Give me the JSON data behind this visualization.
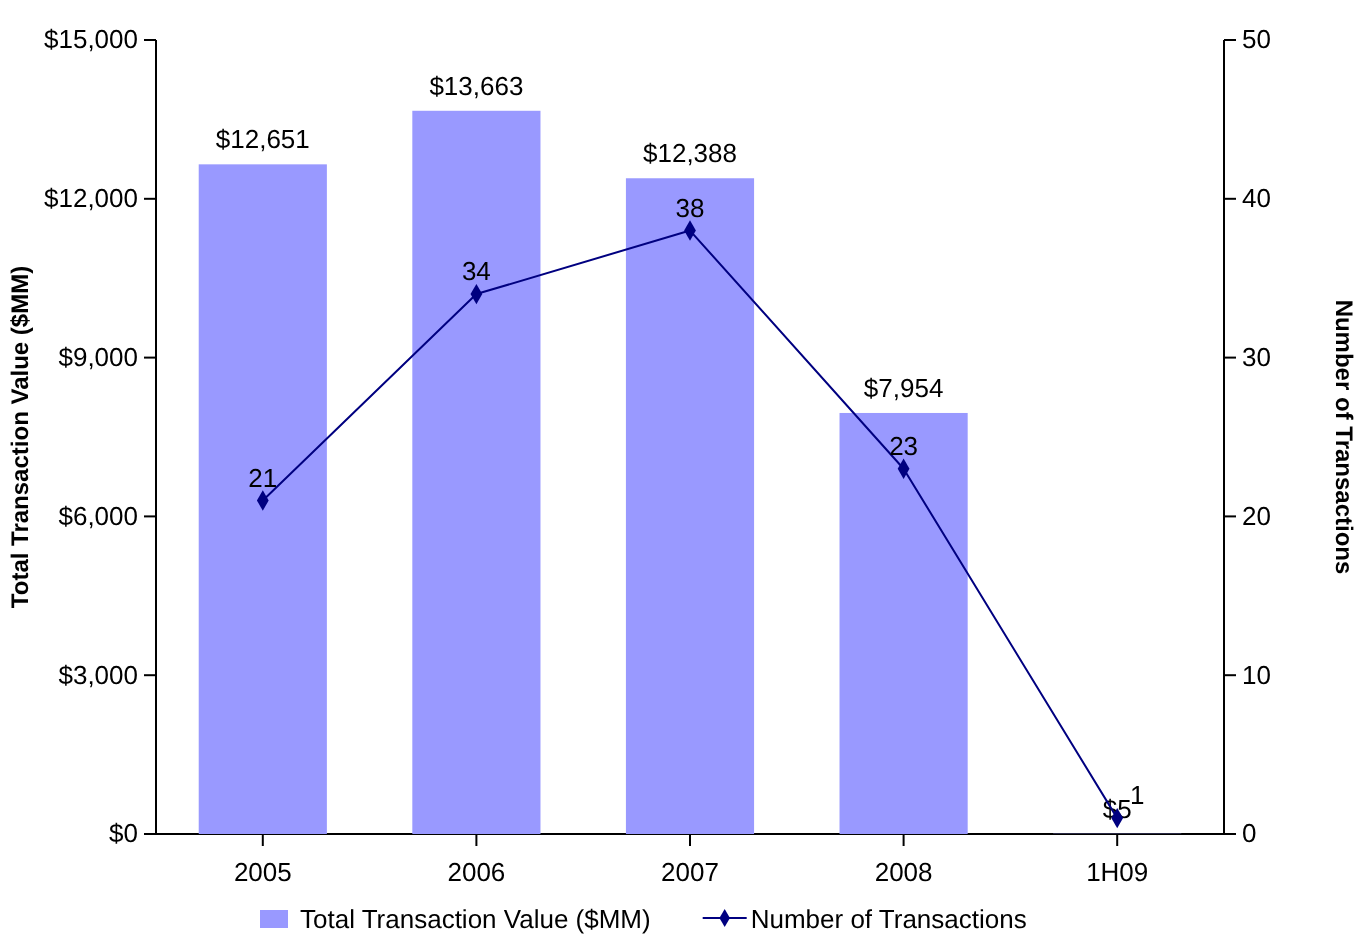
{
  "chart_data": {
    "type": "bar",
    "categories": [
      "2005",
      "2006",
      "2007",
      "2008",
      "1H09"
    ],
    "ylabel": "Total Transaction Value ($MM)",
    "y2label": "Number of Transactions",
    "ylim": [
      0,
      15000
    ],
    "yticks": [
      {
        "value": 0,
        "label": "$0"
      },
      {
        "value": 3000,
        "label": "$3,000"
      },
      {
        "value": 6000,
        "label": "$6,000"
      },
      {
        "value": 9000,
        "label": "$9,000"
      },
      {
        "value": 12000,
        "label": "$12,000"
      },
      {
        "value": 15000,
        "label": "$15,000"
      }
    ],
    "y2lim": [
      0,
      50
    ],
    "y2ticks": [
      0,
      10,
      20,
      30,
      40,
      50
    ],
    "series": [
      {
        "name": "Total Transaction Value ($MM)",
        "color": "#9999ff",
        "values": [
          12651,
          13663,
          12388,
          7954,
          5
        ],
        "value_labels": [
          "$12,651",
          "$13,663",
          "$12,388",
          "$7,954",
          "$5"
        ]
      },
      {
        "name": "Number of Transactions",
        "type": "line",
        "axis": "y2",
        "color": "#000080",
        "marker": "diamond",
        "values": [
          21,
          34,
          38,
          23,
          1
        ],
        "value_labels": [
          "21",
          "34",
          "38",
          "23",
          "1"
        ]
      }
    ],
    "legend": "bottom"
  }
}
